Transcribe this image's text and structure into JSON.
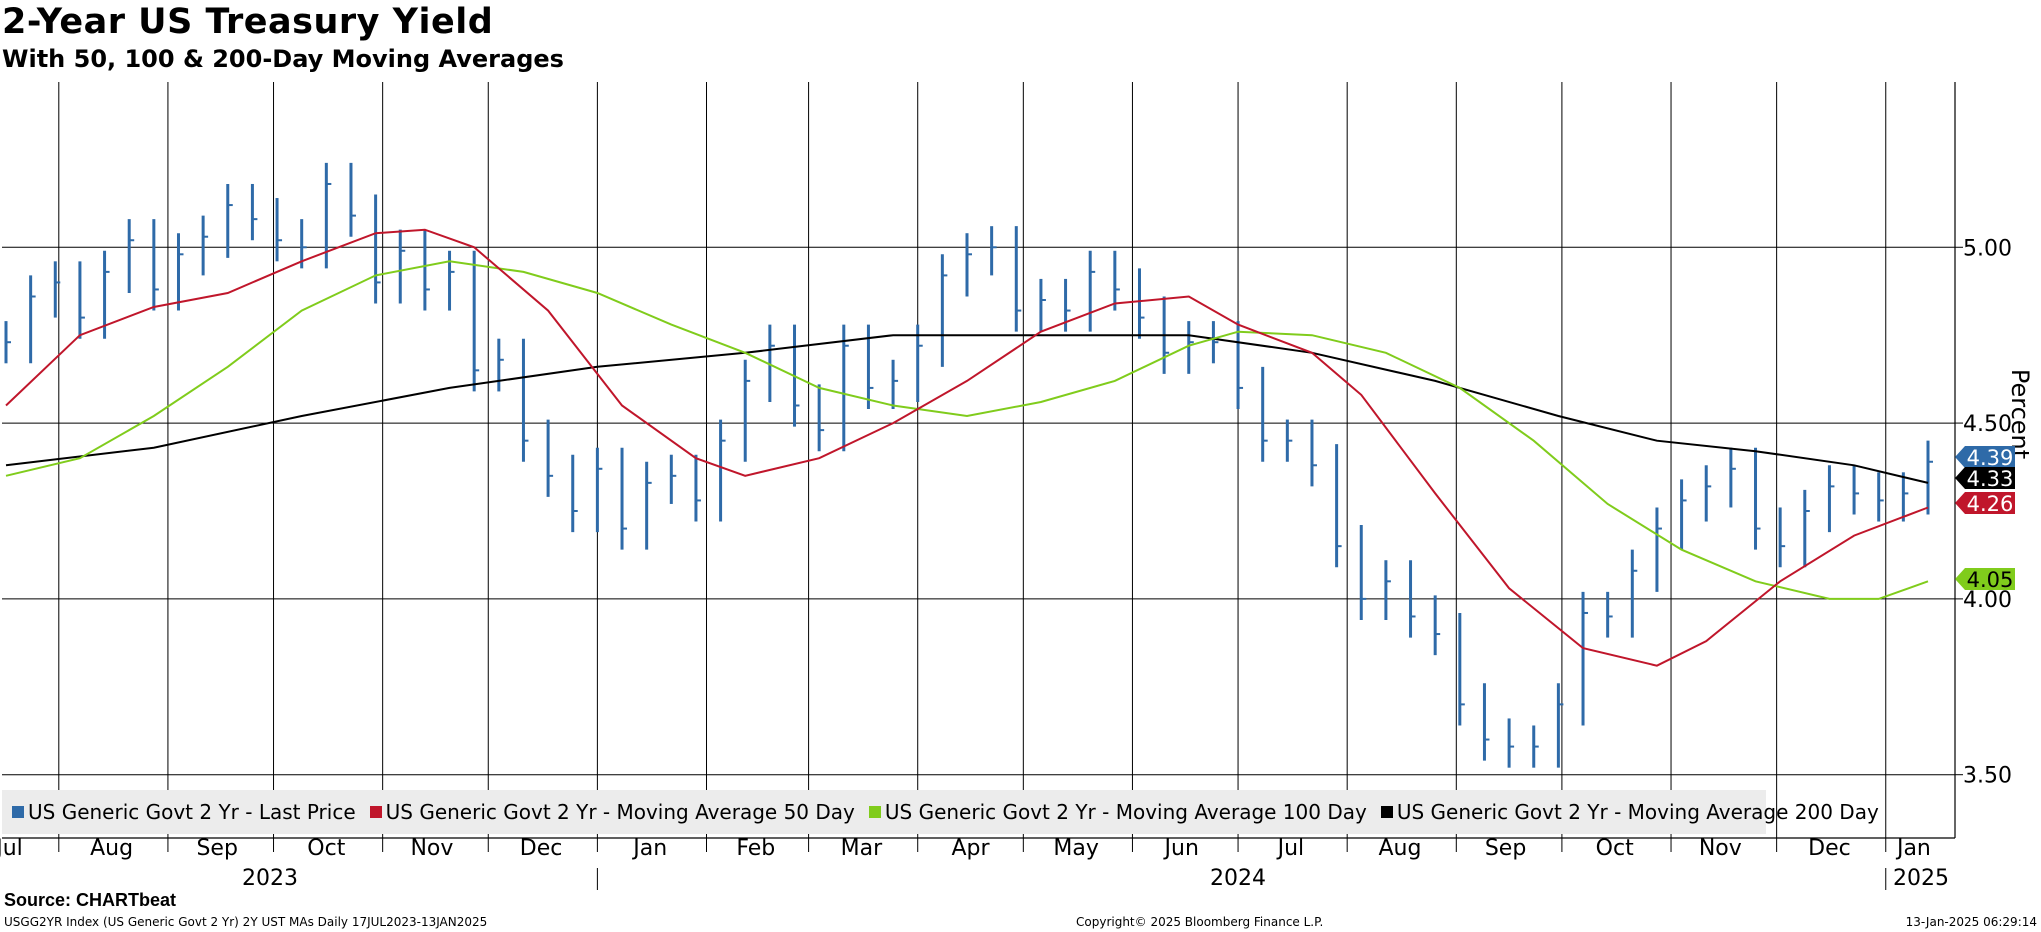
{
  "title": "2-Year US Treasury Yield",
  "subtitle": "With 50, 100 & 200-Day Moving Averages",
  "source": "Source: CHARTbeat",
  "footer_left": "USGG2YR Index (US Generic Govt 2 Yr) 2Y UST MAs  Daily 17JUL2023-13JAN2025",
  "footer_center": "Copyright© 2025 Bloomberg Finance L.P.",
  "footer_right": "13-Jan-2025 06:29:14",
  "colors": {
    "price": "#2e6aa8",
    "ma50": "#c0162b",
    "ma100": "#80cc1c",
    "ma200": "#000000",
    "grid": "#000000",
    "legend_bg": "#ececec"
  },
  "chart_data": {
    "type": "line",
    "ylabel": "Percent",
    "ylim": [
      3.32,
      5.47
    ],
    "y_ticks": [
      "3.50",
      "4.00",
      "4.50",
      "5.00"
    ],
    "x_range": [
      "2023-07-17",
      "2025-01-13"
    ],
    "month_labels": [
      "Jul",
      "Aug",
      "Sep",
      "Oct",
      "Nov",
      "Dec",
      "Jan",
      "Feb",
      "Mar",
      "Apr",
      "May",
      "Jun",
      "Jul",
      "Aug",
      "Sep",
      "Oct",
      "Nov",
      "Dec",
      "Jan"
    ],
    "year_labels": [
      "2023",
      "2024",
      "2025"
    ],
    "series": [
      {
        "name": "US Generic Govt 2 Yr - Last Price",
        "style": "bars",
        "points": [
          [
            "2023-07-17",
            4.73
          ],
          [
            "2023-07-24",
            4.86
          ],
          [
            "2023-07-31",
            4.9
          ],
          [
            "2023-08-07",
            4.8
          ],
          [
            "2023-08-14",
            4.93
          ],
          [
            "2023-08-21",
            5.02
          ],
          [
            "2023-08-28",
            4.88
          ],
          [
            "2023-09-04",
            4.98
          ],
          [
            "2023-09-11",
            5.03
          ],
          [
            "2023-09-18",
            5.12
          ],
          [
            "2023-09-25",
            5.08
          ],
          [
            "2023-10-02",
            5.02
          ],
          [
            "2023-10-09",
            5.0
          ],
          [
            "2023-10-16",
            5.18
          ],
          [
            "2023-10-23",
            5.09
          ],
          [
            "2023-10-30",
            4.9
          ],
          [
            "2023-11-06",
            4.99
          ],
          [
            "2023-11-13",
            4.88
          ],
          [
            "2023-11-20",
            4.93
          ],
          [
            "2023-11-27",
            4.65
          ],
          [
            "2023-12-04",
            4.68
          ],
          [
            "2023-12-11",
            4.45
          ],
          [
            "2023-12-18",
            4.35
          ],
          [
            "2023-12-25",
            4.25
          ],
          [
            "2024-01-01",
            4.37
          ],
          [
            "2024-01-08",
            4.2
          ],
          [
            "2024-01-15",
            4.33
          ],
          [
            "2024-01-22",
            4.35
          ],
          [
            "2024-01-29",
            4.28
          ],
          [
            "2024-02-05",
            4.45
          ],
          [
            "2024-02-12",
            4.62
          ],
          [
            "2024-02-19",
            4.72
          ],
          [
            "2024-02-26",
            4.55
          ],
          [
            "2024-03-04",
            4.48
          ],
          [
            "2024-03-11",
            4.72
          ],
          [
            "2024-03-18",
            4.6
          ],
          [
            "2024-03-25",
            4.62
          ],
          [
            "2024-04-01",
            4.72
          ],
          [
            "2024-04-08",
            4.92
          ],
          [
            "2024-04-15",
            4.98
          ],
          [
            "2024-04-22",
            5.0
          ],
          [
            "2024-04-29",
            4.82
          ],
          [
            "2024-05-06",
            4.85
          ],
          [
            "2024-05-13",
            4.82
          ],
          [
            "2024-05-20",
            4.93
          ],
          [
            "2024-05-27",
            4.88
          ],
          [
            "2024-06-03",
            4.8
          ],
          [
            "2024-06-10",
            4.7
          ],
          [
            "2024-06-17",
            4.73
          ],
          [
            "2024-06-24",
            4.73
          ],
          [
            "2024-07-01",
            4.6
          ],
          [
            "2024-07-08",
            4.45
          ],
          [
            "2024-07-15",
            4.45
          ],
          [
            "2024-07-22",
            4.38
          ],
          [
            "2024-07-29",
            4.15
          ],
          [
            "2024-08-05",
            4.0
          ],
          [
            "2024-08-12",
            4.05
          ],
          [
            "2024-08-19",
            3.95
          ],
          [
            "2024-08-26",
            3.9
          ],
          [
            "2024-09-02",
            3.7
          ],
          [
            "2024-09-09",
            3.6
          ],
          [
            "2024-09-16",
            3.58
          ],
          [
            "2024-09-23",
            3.58
          ],
          [
            "2024-09-30",
            3.7
          ],
          [
            "2024-10-07",
            3.96
          ],
          [
            "2024-10-14",
            3.95
          ],
          [
            "2024-10-21",
            4.08
          ],
          [
            "2024-10-28",
            4.2
          ],
          [
            "2024-11-04",
            4.28
          ],
          [
            "2024-11-11",
            4.32
          ],
          [
            "2024-11-18",
            4.37
          ],
          [
            "2024-11-25",
            4.2
          ],
          [
            "2024-12-02",
            4.15
          ],
          [
            "2024-12-09",
            4.25
          ],
          [
            "2024-12-16",
            4.32
          ],
          [
            "2024-12-23",
            4.3
          ],
          [
            "2024-12-30",
            4.28
          ],
          [
            "2025-01-06",
            4.3
          ],
          [
            "2025-01-13",
            4.39
          ]
        ]
      },
      {
        "name": "US Generic Govt 2 Yr - Moving Average 50 Day",
        "style": "line",
        "points": [
          [
            "2023-07-17",
            4.55
          ],
          [
            "2023-08-07",
            4.75
          ],
          [
            "2023-08-28",
            4.83
          ],
          [
            "2023-09-18",
            4.87
          ],
          [
            "2023-10-09",
            4.96
          ],
          [
            "2023-10-30",
            5.04
          ],
          [
            "2023-11-13",
            5.05
          ],
          [
            "2023-11-27",
            5.0
          ],
          [
            "2023-12-18",
            4.82
          ],
          [
            "2024-01-08",
            4.55
          ],
          [
            "2024-01-29",
            4.4
          ],
          [
            "2024-02-12",
            4.35
          ],
          [
            "2024-03-04",
            4.4
          ],
          [
            "2024-03-25",
            4.5
          ],
          [
            "2024-04-15",
            4.62
          ],
          [
            "2024-05-06",
            4.76
          ],
          [
            "2024-05-27",
            4.84
          ],
          [
            "2024-06-17",
            4.86
          ],
          [
            "2024-07-01",
            4.78
          ],
          [
            "2024-07-22",
            4.7
          ],
          [
            "2024-08-05",
            4.58
          ],
          [
            "2024-08-26",
            4.3
          ],
          [
            "2024-09-16",
            4.03
          ],
          [
            "2024-10-07",
            3.86
          ],
          [
            "2024-10-28",
            3.81
          ],
          [
            "2024-11-11",
            3.88
          ],
          [
            "2024-12-02",
            4.05
          ],
          [
            "2024-12-23",
            4.18
          ],
          [
            "2025-01-13",
            4.26
          ]
        ]
      },
      {
        "name": "US Generic Govt 2 Yr - Moving Average 100 Day",
        "style": "line",
        "points": [
          [
            "2023-07-17",
            4.35
          ],
          [
            "2023-08-07",
            4.4
          ],
          [
            "2023-08-28",
            4.52
          ],
          [
            "2023-09-18",
            4.66
          ],
          [
            "2023-10-09",
            4.82
          ],
          [
            "2023-10-30",
            4.92
          ],
          [
            "2023-11-20",
            4.96
          ],
          [
            "2023-12-11",
            4.93
          ],
          [
            "2024-01-01",
            4.87
          ],
          [
            "2024-01-22",
            4.78
          ],
          [
            "2024-02-12",
            4.7
          ],
          [
            "2024-03-04",
            4.6
          ],
          [
            "2024-03-25",
            4.55
          ],
          [
            "2024-04-15",
            4.52
          ],
          [
            "2024-05-06",
            4.56
          ],
          [
            "2024-05-27",
            4.62
          ],
          [
            "2024-06-17",
            4.72
          ],
          [
            "2024-07-01",
            4.76
          ],
          [
            "2024-07-22",
            4.75
          ],
          [
            "2024-08-12",
            4.7
          ],
          [
            "2024-09-02",
            4.6
          ],
          [
            "2024-09-23",
            4.45
          ],
          [
            "2024-10-14",
            4.27
          ],
          [
            "2024-11-04",
            4.14
          ],
          [
            "2024-11-25",
            4.05
          ],
          [
            "2024-12-16",
            4.0
          ],
          [
            "2024-12-30",
            4.0
          ],
          [
            "2025-01-13",
            4.05
          ]
        ]
      },
      {
        "name": "US Generic Govt 2 Yr - Moving Average 200 Day",
        "style": "line",
        "points": [
          [
            "2023-07-17",
            4.38
          ],
          [
            "2023-08-28",
            4.43
          ],
          [
            "2023-10-09",
            4.52
          ],
          [
            "2023-11-20",
            4.6
          ],
          [
            "2024-01-01",
            4.66
          ],
          [
            "2024-02-12",
            4.7
          ],
          [
            "2024-03-25",
            4.75
          ],
          [
            "2024-05-06",
            4.75
          ],
          [
            "2024-06-17",
            4.75
          ],
          [
            "2024-07-22",
            4.7
          ],
          [
            "2024-08-26",
            4.62
          ],
          [
            "2024-09-30",
            4.52
          ],
          [
            "2024-10-28",
            4.45
          ],
          [
            "2024-11-25",
            4.42
          ],
          [
            "2024-12-23",
            4.38
          ],
          [
            "2025-01-13",
            4.33
          ]
        ]
      }
    ],
    "last_values": {
      "price": "4.39",
      "ma200": "4.33",
      "ma50": "4.26",
      "ma100": "4.05"
    }
  }
}
